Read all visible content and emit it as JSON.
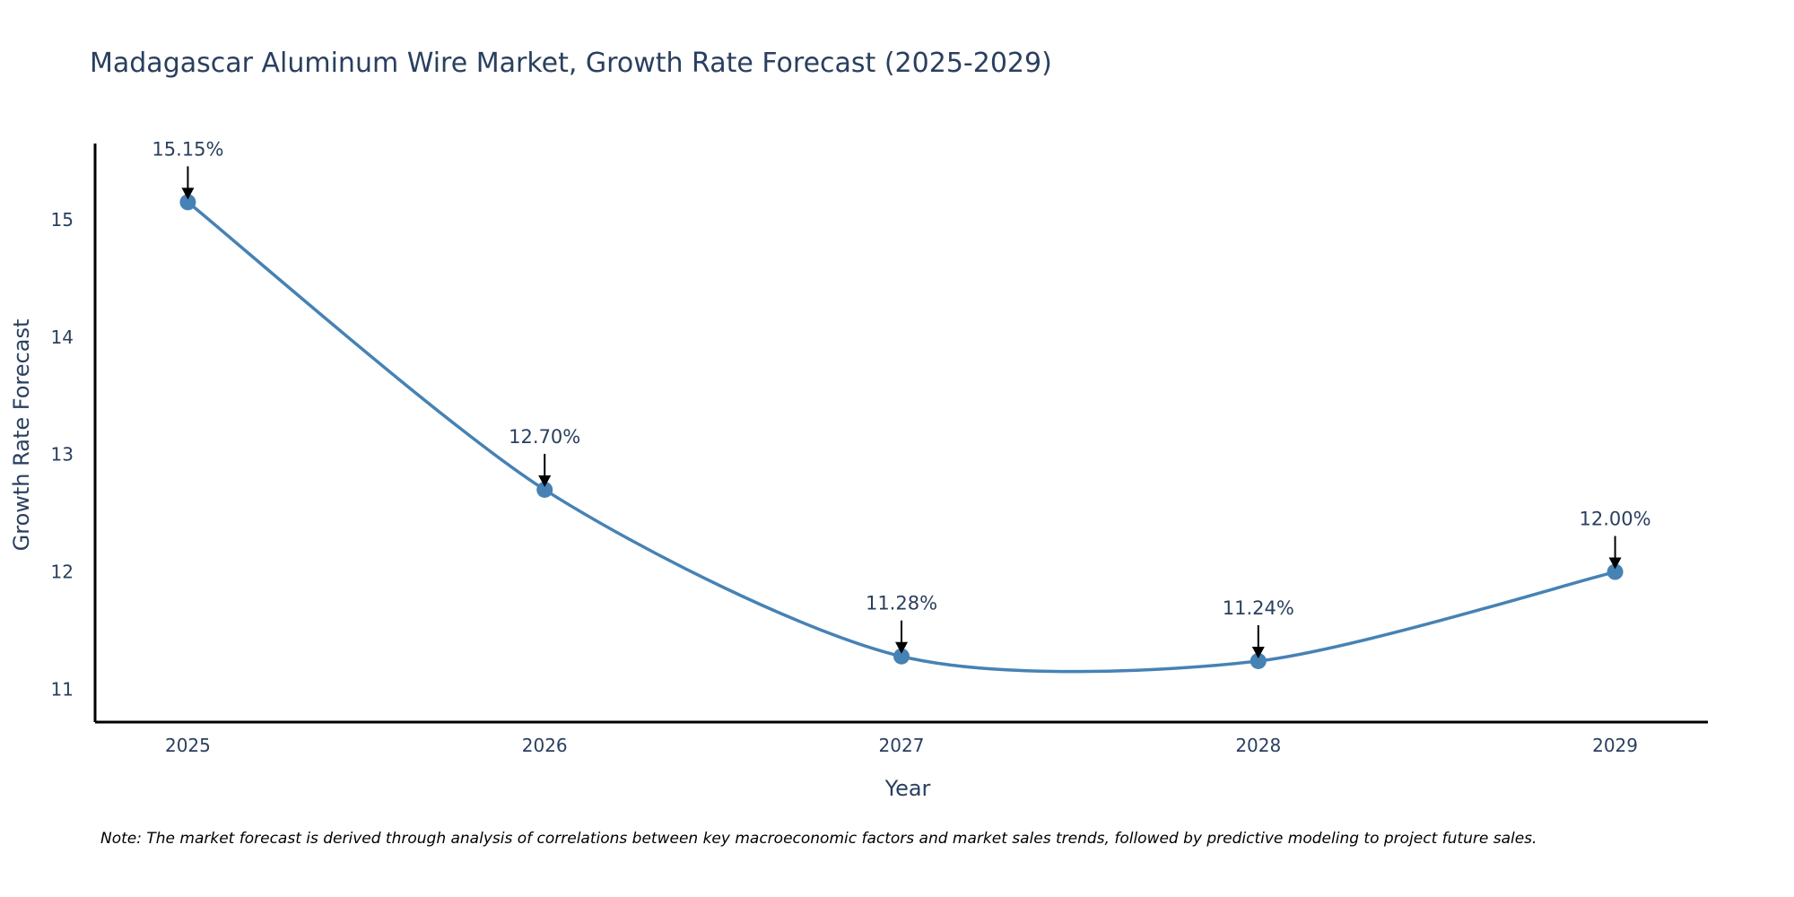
{
  "chart_data": {
    "type": "line",
    "title": "Madagascar Aluminum Wire Market, Growth Rate Forecast (2025-2029)",
    "xlabel": "Year",
    "ylabel": "Growth Rate Forecast",
    "categories": [
      "2025",
      "2026",
      "2027",
      "2028",
      "2029"
    ],
    "series": [
      {
        "name": "Growth Rate Forecast",
        "values": [
          15.15,
          12.7,
          11.28,
          11.24,
          12.0
        ],
        "labels": [
          "15.15%",
          "12.70%",
          "11.28%",
          "11.24%",
          "12.00%"
        ],
        "color": "#4682b4"
      }
    ],
    "yticks": [
      11,
      12,
      13,
      14,
      15
    ],
    "ytick_labels": [
      "11",
      "12",
      "13",
      "14",
      "15"
    ],
    "ylim": [
      10.72,
      15.65
    ],
    "xlim": [
      -0.26,
      4.26
    ],
    "grid": false,
    "line_shape": "spline",
    "note": "Note: The market forecast is derived through analysis of correlations between key macroeconomic factors and market sales trends, followed by predictive modeling to project future sales."
  },
  "colors": {
    "line": "#4682b4",
    "text": "#2a3f5f",
    "axis": "#000000"
  }
}
